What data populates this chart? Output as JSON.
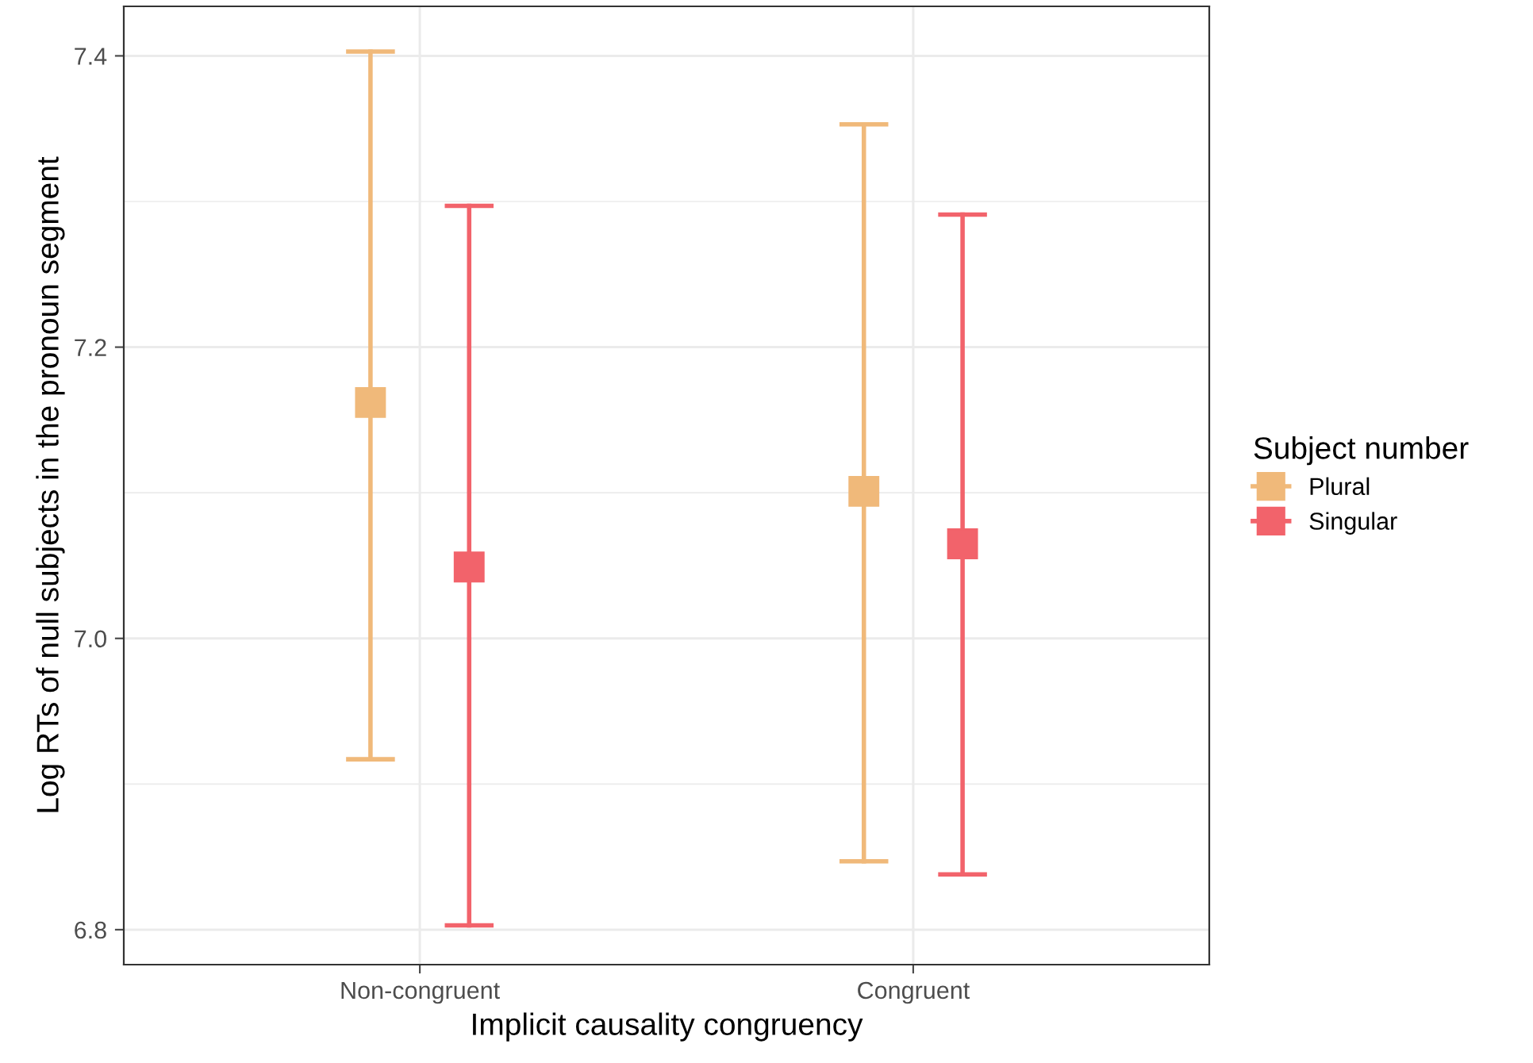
{
  "chart_data": {
    "type": "scatter",
    "xlabel": "Implicit causality congruency",
    "ylabel": "Log RTs of null subjects in the pronoun segment",
    "legend_title": "Subject number",
    "categories": [
      "Non-congruent",
      "Congruent"
    ],
    "series": [
      {
        "name": "Plural",
        "color": "#f0b97a",
        "values": [
          7.162,
          7.101
        ],
        "errors": [
          [
            6.917,
            7.403
          ],
          [
            6.847,
            7.353
          ]
        ]
      },
      {
        "name": "Singular",
        "color": "#f2636b",
        "values": [
          7.049,
          7.065
        ],
        "errors": [
          [
            6.803,
            7.297
          ],
          [
            6.838,
            7.291
          ]
        ]
      }
    ],
    "ylim": [
      6.776,
      7.434
    ],
    "yticks": [
      6.8,
      {
        "value": 7,
        "label": "7.0"
      },
      7.2,
      7.4
    ],
    "grid": true,
    "legend": "right",
    "marker": "square"
  }
}
